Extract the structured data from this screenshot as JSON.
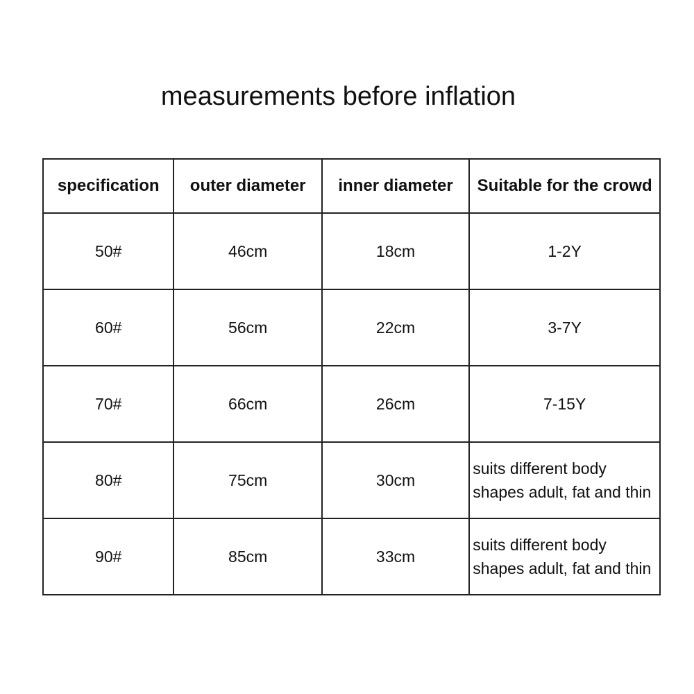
{
  "title": "measurements before inflation",
  "table": {
    "columns": [
      "specification",
      "outer diameter",
      "inner diameter",
      "Suitable for the crowd"
    ],
    "rows": [
      [
        "50#",
        "46cm",
        "18cm",
        "1-2Y"
      ],
      [
        "60#",
        "56cm",
        "22cm",
        "3-7Y"
      ],
      [
        "70#",
        "66cm",
        "26cm",
        "7-15Y"
      ],
      [
        "80#",
        "75cm",
        "30cm",
        "suits different body shapes adult, fat and thin"
      ],
      [
        "90#",
        "85cm",
        "33cm",
        "suits different body shapes adult, fat and thin"
      ]
    ]
  }
}
